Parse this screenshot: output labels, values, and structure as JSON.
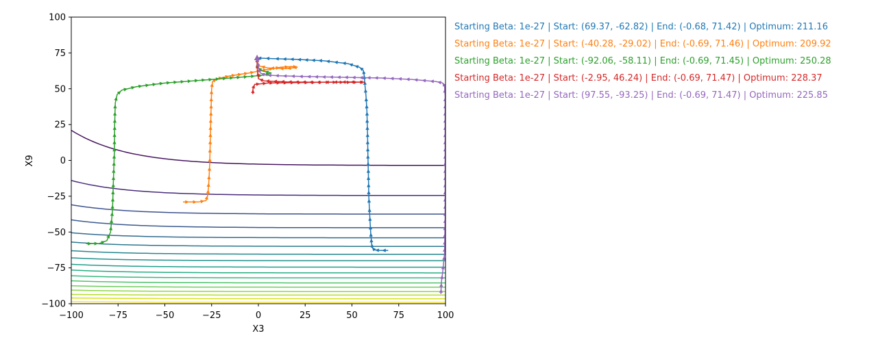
{
  "chart_data": {
    "type": "line",
    "xlabel": "X3",
    "ylabel": "X9",
    "xlim": [
      -100,
      100
    ],
    "ylim": [
      -100,
      100
    ],
    "xticks": [
      -100,
      -75,
      -50,
      -25,
      0,
      25,
      50,
      75,
      100
    ],
    "yticks": [
      -100,
      -75,
      -50,
      -25,
      0,
      25,
      50,
      75,
      100
    ],
    "legend_placement": "outside-right",
    "contour_levels": [
      {
        "y_right": -3.5,
        "y_left": 21,
        "color": "#45145f"
      },
      {
        "y_right": -24.5,
        "y_left": -14,
        "color": "#472a7a"
      },
      {
        "y_right": -37.5,
        "y_left": -31,
        "color": "#3b518b"
      },
      {
        "y_right": -47,
        "y_left": -41.5,
        "color": "#38598c"
      },
      {
        "y_right": -54,
        "y_left": -50.5,
        "color": "#30698e"
      },
      {
        "y_right": -60,
        "y_left": -57,
        "color": "#2a788e"
      },
      {
        "y_right": -65.5,
        "y_left": -63,
        "color": "#25858e"
      },
      {
        "y_right": -70,
        "y_left": -68,
        "color": "#21918c"
      },
      {
        "y_right": -74.5,
        "y_left": -72.5,
        "color": "#1f9e89"
      },
      {
        "y_right": -78.5,
        "y_left": -76.5,
        "color": "#26ad81"
      },
      {
        "y_right": -82,
        "y_left": -80.5,
        "color": "#35b779"
      },
      {
        "y_right": -85.5,
        "y_left": -84,
        "color": "#4ec36b"
      },
      {
        "y_right": -88.5,
        "y_left": -87.5,
        "color": "#6ccd5a"
      },
      {
        "y_right": -91.5,
        "y_left": -90.5,
        "color": "#8ed645"
      },
      {
        "y_right": -94,
        "y_left": -93.5,
        "color": "#b5de2b"
      },
      {
        "y_right": -96.5,
        "y_left": -96,
        "color": "#d8e219"
      },
      {
        "y_right": -99,
        "y_left": -98.5,
        "color": "#fde725"
      }
    ],
    "series": [
      {
        "name": "Starting Beta: 1e-27 | Start: (69.37, -62.82) | End: (-0.68, 71.42) | Optimum: 211.16",
        "color": "#1f77b4",
        "points": [
          [
            69.37,
            -62.82
          ],
          [
            65,
            -62.8
          ],
          [
            62,
            -62.5
          ],
          [
            61,
            -61
          ],
          [
            60.5,
            -58
          ],
          [
            60,
            -50
          ],
          [
            59.5,
            -38
          ],
          [
            59,
            -25
          ],
          [
            58.8,
            -10
          ],
          [
            58.5,
            5
          ],
          [
            58.3,
            20
          ],
          [
            58,
            35
          ],
          [
            57.5,
            45
          ],
          [
            57,
            52
          ],
          [
            56.5,
            60
          ],
          [
            56,
            63
          ],
          [
            54,
            65
          ],
          [
            48,
            67.5
          ],
          [
            35,
            69.5
          ],
          [
            20,
            70.5
          ],
          [
            8,
            71
          ],
          [
            2,
            71.3
          ],
          [
            -0.68,
            71.42
          ]
        ]
      },
      {
        "name": "Starting Beta: 1e-27 | Start: (-40.28, -29.02) | End: (-0.69, 71.46) | Optimum: 209.92",
        "color": "#ff7f0e",
        "points": [
          [
            -40.28,
            -29.02
          ],
          [
            -32,
            -29
          ],
          [
            -28,
            -28
          ],
          [
            -27,
            -24
          ],
          [
            -26.5,
            -15
          ],
          [
            -26,
            -3
          ],
          [
            -25.8,
            10
          ],
          [
            -25.5,
            25
          ],
          [
            -25.2,
            40
          ],
          [
            -25,
            50
          ],
          [
            -24.5,
            55
          ],
          [
            -22,
            57
          ],
          [
            -15,
            59
          ],
          [
            -5,
            61
          ],
          [
            5,
            63.5
          ],
          [
            12,
            65
          ],
          [
            18,
            65.5
          ],
          [
            21,
            65
          ],
          [
            15,
            64
          ],
          [
            5,
            64.5
          ],
          [
            0,
            66
          ],
          [
            -0.5,
            69
          ],
          [
            -0.69,
            71.46
          ]
        ]
      },
      {
        "name": "Starting Beta: 1e-27 | Start: (-92.06, -58.11) | End: (-0.69, 71.45) | Optimum: 250.28",
        "color": "#2ca02c",
        "points": [
          [
            -92.06,
            -58.11
          ],
          [
            -85,
            -58
          ],
          [
            -81,
            -56
          ],
          [
            -79,
            -50
          ],
          [
            -78,
            -35
          ],
          [
            -77.5,
            -15
          ],
          [
            -77,
            5
          ],
          [
            -76.8,
            25
          ],
          [
            -76.5,
            40
          ],
          [
            -75.5,
            46
          ],
          [
            -73,
            49
          ],
          [
            -65,
            51.5
          ],
          [
            -50,
            54
          ],
          [
            -35,
            55.5
          ],
          [
            -20,
            57
          ],
          [
            -5,
            58.5
          ],
          [
            3,
            59.5
          ],
          [
            7,
            61
          ],
          [
            2,
            62.5
          ],
          [
            -0.5,
            65
          ],
          [
            -0.69,
            68
          ],
          [
            -0.69,
            71.45
          ]
        ]
      },
      {
        "name": "Starting Beta: 1e-27 | Start: (-2.95, 46.24) | End: (-0.69, 71.47) | Optimum: 228.37",
        "color": "#d62728",
        "points": [
          [
            -2.95,
            46.24
          ],
          [
            -2.9,
            50
          ],
          [
            -2,
            53
          ],
          [
            5,
            54
          ],
          [
            20,
            54.3
          ],
          [
            35,
            54.5
          ],
          [
            50,
            54.5
          ],
          [
            57,
            54.6
          ],
          [
            48,
            54.7
          ],
          [
            30,
            54.5
          ],
          [
            15,
            54.8
          ],
          [
            3,
            55.5
          ],
          [
            0,
            57
          ],
          [
            -0.5,
            63
          ],
          [
            -0.69,
            68
          ],
          [
            -0.69,
            71.47
          ]
        ]
      },
      {
        "name": "Starting Beta: 1e-27 | Start: (97.55, -93.25) | End: (-0.69, 71.47) | Optimum: 225.85",
        "color": "#9467bd",
        "points": [
          [
            97.55,
            -93.25
          ],
          [
            97.8,
            -85
          ],
          [
            98.5,
            -78
          ],
          [
            99.5,
            -65
          ],
          [
            99.8,
            -40
          ],
          [
            99.8,
            -10
          ],
          [
            99.8,
            20
          ],
          [
            99.8,
            45
          ],
          [
            99.5,
            52
          ],
          [
            98.5,
            54
          ],
          [
            95,
            55
          ],
          [
            82,
            56.5
          ],
          [
            65,
            57.5
          ],
          [
            45,
            58
          ],
          [
            25,
            58.5
          ],
          [
            12,
            59
          ],
          [
            4,
            59.5
          ],
          [
            1,
            61
          ],
          [
            0,
            65
          ],
          [
            -0.5,
            69
          ],
          [
            -0.69,
            71.47
          ]
        ]
      }
    ]
  }
}
